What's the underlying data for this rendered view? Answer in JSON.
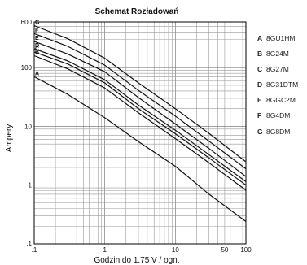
{
  "chart_data": {
    "type": "line",
    "title": "Schemat Rozładowań",
    "xlabel": "Godzin do 1.75 V / ogn.",
    "ylabel": "Ampery",
    "x_scale": "log",
    "y_scale": "log",
    "xlim": [
      0.1,
      100
    ],
    "ylim": [
      0.1,
      600
    ],
    "x_ticks": [
      {
        "value": 0.1,
        "label": ".1"
      },
      {
        "value": 1,
        "label": "1"
      },
      {
        "value": 10,
        "label": "10"
      },
      {
        "value": 50,
        "label": "50"
      },
      {
        "value": 100,
        "label": "100"
      }
    ],
    "y_ticks": [
      {
        "value": 0.1,
        "label": ".1"
      },
      {
        "value": 1,
        "label": "1"
      },
      {
        "value": 10,
        "label": "10"
      },
      {
        "value": 100,
        "label": "100"
      },
      {
        "value": 600,
        "label": "600"
      }
    ],
    "grid": true,
    "legend_position": "right",
    "series": [
      {
        "key": "A",
        "name": "8GU1HM",
        "x": [
          0.1,
          0.3,
          1,
          3,
          10,
          30,
          100
        ],
        "y": [
          70,
          35,
          14,
          5.5,
          2.1,
          0.7,
          0.24
        ]
      },
      {
        "key": "B",
        "name": "8G24M",
        "x": [
          0.1,
          0.3,
          1,
          3,
          10,
          30,
          100
        ],
        "y": [
          160,
          95,
          45,
          17,
          6.2,
          2.4,
          0.82
        ]
      },
      {
        "key": "C",
        "name": "8G27M",
        "x": [
          0.1,
          0.3,
          1,
          3,
          10,
          30,
          100
        ],
        "y": [
          185,
          115,
          55,
          20,
          7.5,
          2.9,
          1.0
        ]
      },
      {
        "key": "D",
        "name": "8G31DTM",
        "x": [
          0.1,
          0.3,
          1,
          3,
          10,
          30,
          100
        ],
        "y": [
          210,
          130,
          62,
          23,
          8.6,
          3.3,
          1.15
        ]
      },
      {
        "key": "E",
        "name": "8GGC2M",
        "x": [
          0.1,
          0.3,
          1,
          3,
          10,
          30,
          100
        ],
        "y": [
          280,
          170,
          85,
          31,
          11,
          4.2,
          1.4
        ]
      },
      {
        "key": "F",
        "name": "8G4DM",
        "x": [
          0.1,
          0.3,
          1,
          3,
          10,
          30,
          100
        ],
        "y": [
          380,
          230,
          110,
          41,
          15,
          5.6,
          1.9
        ]
      },
      {
        "key": "G",
        "name": "8G8DM",
        "x": [
          0.1,
          0.3,
          1,
          3,
          10,
          30,
          100
        ],
        "y": [
          520,
          310,
          145,
          55,
          20,
          7.6,
          2.5
        ]
      }
    ]
  }
}
